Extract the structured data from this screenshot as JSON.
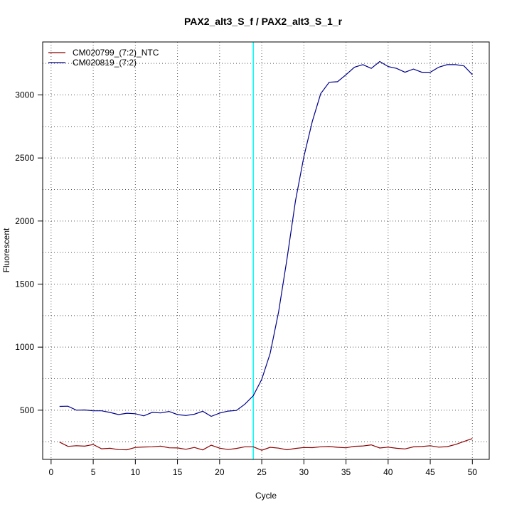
{
  "chart_data": {
    "type": "line",
    "title": "PAX2_alt3_S_f / PAX2_alt3_S_1_r",
    "xlabel": "Cycle",
    "ylabel": "Fluorescent",
    "xlim": [
      -1,
      52
    ],
    "ylim": [
      110,
      3420
    ],
    "xticks": [
      0,
      5,
      10,
      15,
      20,
      25,
      30,
      35,
      40,
      45,
      50
    ],
    "yticks": [
      500,
      1000,
      1500,
      2000,
      2500,
      3000
    ],
    "grid": true,
    "legend_position": "top-left",
    "threshold_cycle": 24,
    "threshold_color": "#00ffff",
    "x": [
      1,
      2,
      3,
      4,
      5,
      6,
      7,
      8,
      9,
      10,
      11,
      12,
      13,
      14,
      15,
      16,
      17,
      18,
      19,
      20,
      21,
      22,
      23,
      24,
      25,
      26,
      27,
      28,
      29,
      30,
      31,
      32,
      33,
      34,
      35,
      36,
      37,
      38,
      39,
      40,
      41,
      42,
      43,
      44,
      45,
      46,
      47,
      48,
      49,
      50
    ],
    "series": [
      {
        "name": "CM020799_(7:2)_NTC",
        "color": "#8b0000",
        "values": [
          247,
          213,
          218,
          215,
          228,
          194,
          198,
          187,
          186,
          205,
          208,
          210,
          215,
          202,
          201,
          190,
          205,
          185,
          223,
          199,
          188,
          197,
          210,
          210,
          182,
          206,
          199,
          186,
          197,
          204,
          203,
          210,
          212,
          206,
          202,
          214,
          216,
          225,
          200,
          207,
          198,
          193,
          209,
          212,
          218,
          207,
          211,
          228,
          252,
          275
        ]
      },
      {
        "name": "CM020819_(7:2)",
        "color": "#00008b",
        "values": [
          530,
          532,
          500,
          502,
          495,
          495,
          482,
          465,
          476,
          472,
          455,
          483,
          478,
          490,
          465,
          458,
          468,
          492,
          451,
          477,
          493,
          498,
          548,
          615,
          745,
          950,
          1280,
          1700,
          2160,
          2510,
          2790,
          3010,
          3100,
          3105,
          3160,
          3220,
          3240,
          3210,
          3265,
          3225,
          3210,
          3180,
          3205,
          3180,
          3180,
          3220,
          3240,
          3240,
          3230,
          3160
        ]
      }
    ]
  }
}
